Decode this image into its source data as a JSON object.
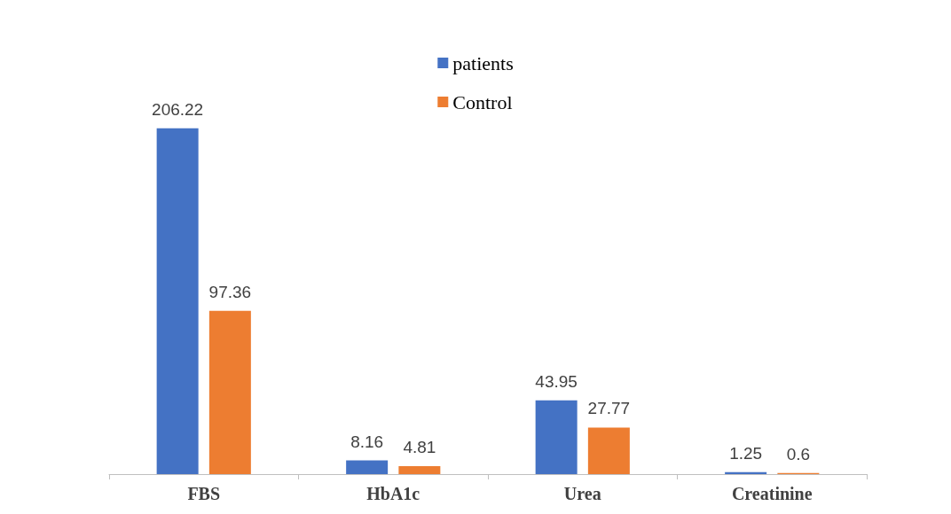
{
  "chart_data": {
    "type": "bar",
    "categories": [
      "FBS",
      "HbA1c",
      "Urea",
      "Creatinine"
    ],
    "series": [
      {
        "name": "patients",
        "color": "#4472c4",
        "values": [
          206.22,
          8.16,
          43.95,
          1.25
        ]
      },
      {
        "name": "Control",
        "color": "#ed7d31",
        "values": [
          97.36,
          4.81,
          27.77,
          0.6
        ]
      }
    ],
    "data_labels": true,
    "legend": "top"
  }
}
